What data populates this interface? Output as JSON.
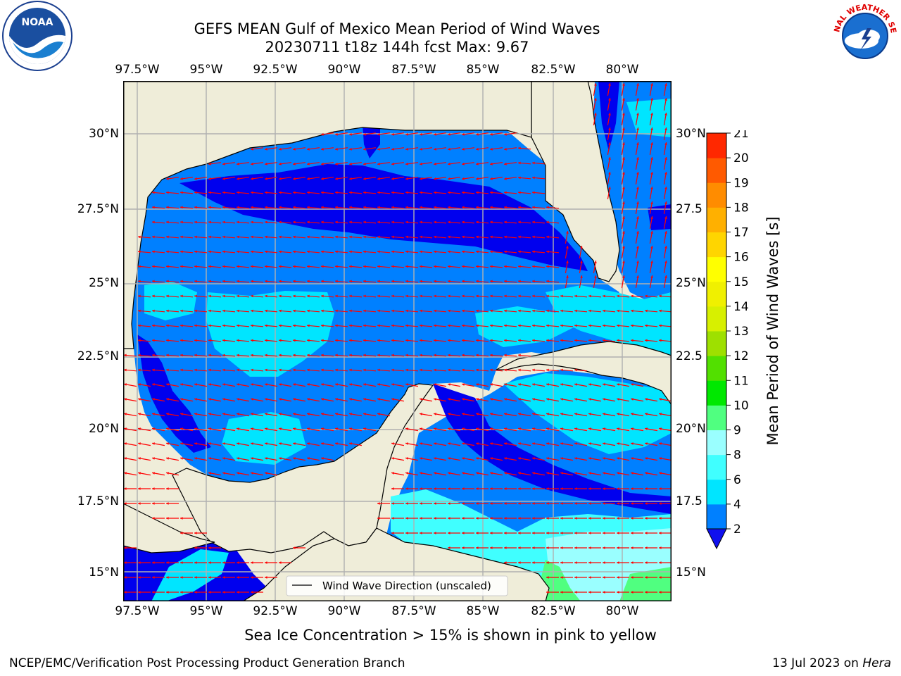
{
  "header": {
    "title_line1": "GEFS MEAN Gulf of Mexico Mean Period of Wind Waves",
    "title_line2": "20230711 t18z 144h fcst   Max: 9.67"
  },
  "axes": {
    "lon_labels": [
      "97.5°W",
      "95°W",
      "92.5°W",
      "90°W",
      "87.5°W",
      "85°W",
      "82.5°W",
      "80°W"
    ],
    "lat_labels_left": [
      "30°N",
      "27.5°N",
      "25°N",
      "22.5°N",
      "20°N",
      "17.5°N",
      "15°N"
    ],
    "lat_labels_right": [
      "30°N",
      "27.5",
      "25°N",
      "22.5",
      "20°N",
      "17.5",
      "15°N"
    ]
  },
  "legend": {
    "label": "Wind Wave Direction (unscaled)"
  },
  "colorbar": {
    "label": "Mean Period of Wind Waves [s]",
    "ticks": [
      "2",
      "4",
      "6",
      "8",
      "9",
      "10",
      "11",
      "12",
      "13",
      "14",
      "15",
      "16",
      "17",
      "18",
      "19",
      "20",
      "21"
    ],
    "colors": [
      "#0080ff",
      "#00e5ff",
      "#40ffff",
      "#9affff",
      "#50ff80",
      "#00e800",
      "#52e000",
      "#9ee000",
      "#d7f000",
      "#f0f000",
      "#ffff00",
      "#ffd500",
      "#ffb000",
      "#ff8c00",
      "#ff5a00",
      "#ff2800",
      "#ff0000"
    ],
    "extend_color": "#1010ee"
  },
  "map_colors": {
    "land": "#efedd9",
    "period_2_4": "#0080ff",
    "period_lt2": "#0000ee",
    "period_4_6": "#00e5ff",
    "period_6_8": "#40ffff",
    "period_8_9": "#9affff",
    "period_9_10": "#50ff80",
    "arrow": "#ff0000"
  },
  "footer": {
    "note": "Sea Ice Concentration > 15% is shown in pink to yellow",
    "credit": "NCEP/EMC/Verification Post Processing Product Generation Branch",
    "date": "13 Jul 2023 on",
    "machine": "Hera"
  },
  "logos": {
    "left": {
      "icon": "noaa-logo",
      "text": "NOAA"
    },
    "right": {
      "icon": "nws-logo",
      "text": "NATIONAL WEATHER SERVICE"
    }
  }
}
